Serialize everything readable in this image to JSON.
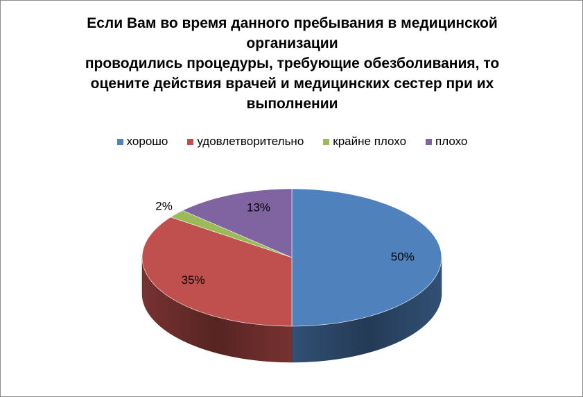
{
  "chart_data": {
    "type": "pie",
    "title_lines": [
      "Если  Вам  во  время  данного  пребывания в медицинской",
      "организации",
      "проводились   процедуры, требующие обезболивания, то",
      "оцените действия врачей и медицинских сестер при их",
      "выполнении"
    ],
    "categories": [
      "хорошо",
      "удовлетворительно",
      "крайне плохо",
      "плохо"
    ],
    "values": [
      50,
      35,
      2,
      13
    ],
    "labels": [
      "50%",
      "35%",
      "2%",
      "13%"
    ],
    "colors": [
      "#4F81BD",
      "#C0504D",
      "#9BBB59",
      "#8064A2"
    ],
    "legend_position": "top",
    "style": "3d"
  }
}
